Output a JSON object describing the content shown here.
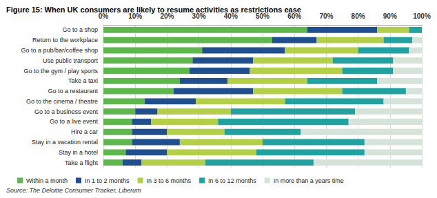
{
  "chart_data": {
    "type": "bar",
    "title": "Figure 15: When UK consumers are likely to resume activities as restrictions ease",
    "annotations": [
      "Source: The Deloitte Consumer Tracker, Liberum"
    ],
    "orientation": "horizontal",
    "stacked": true,
    "grid": true,
    "legend": "bottom",
    "categories": [
      "Go to a shop",
      "Return to the workplace",
      "Go to a pub/bar/coffee shop",
      "Use public transport",
      "Go to the gym / play sports",
      "Take a taxi",
      "Go to a restaurant",
      "Go to the cinema / theatre",
      "Go to a business event",
      "Go to a live event",
      "Hire a car",
      "Stay in a vacation rental",
      "Stay in a hotel",
      "Take a flight"
    ],
    "series": [
      {
        "name": "Within a month",
        "color": "#5cb84a",
        "values": [
          64,
          53,
          31,
          28,
          27,
          24,
          22,
          13,
          10,
          9,
          9,
          9,
          7,
          6
        ]
      },
      {
        "name": "In 1 to 2 months",
        "color": "#1f4f8f",
        "values": [
          22,
          14,
          26,
          19,
          19,
          15,
          25,
          16,
          7,
          6,
          11,
          15,
          13,
          6
        ]
      },
      {
        "name": "In 3 to 6 months",
        "color": "#b3cf45",
        "values": [
          10,
          21,
          23,
          25,
          29,
          25,
          28,
          28,
          23,
          21,
          18,
          26,
          28,
          20
        ]
      },
      {
        "name": "In 6 to 12 months",
        "color": "#20a3a0",
        "values": [
          4,
          9,
          16,
          19,
          16,
          22,
          20,
          31,
          39,
          41,
          24,
          32,
          34,
          34
        ]
      },
      {
        "name": "In more than a years time",
        "color": "#d5e3d8",
        "values": [
          0,
          3,
          4,
          9,
          9,
          14,
          5,
          12,
          21,
          23,
          38,
          18,
          18,
          34
        ]
      }
    ],
    "xlim": [
      0,
      100
    ],
    "xticks": [
      {
        "value": 0,
        "label": "0%"
      },
      {
        "value": 10,
        "label": "10%"
      },
      {
        "value": 20,
        "label": "20%"
      },
      {
        "value": 30,
        "label": "30%"
      },
      {
        "value": 40,
        "label": "40%"
      },
      {
        "value": 50,
        "label": "50%"
      },
      {
        "value": 60,
        "label": "60%"
      },
      {
        "value": 70,
        "label": "70%"
      },
      {
        "value": 80,
        "label": "80%"
      },
      {
        "value": 90,
        "label": "90%"
      },
      {
        "value": 100,
        "label": "100%"
      }
    ]
  }
}
